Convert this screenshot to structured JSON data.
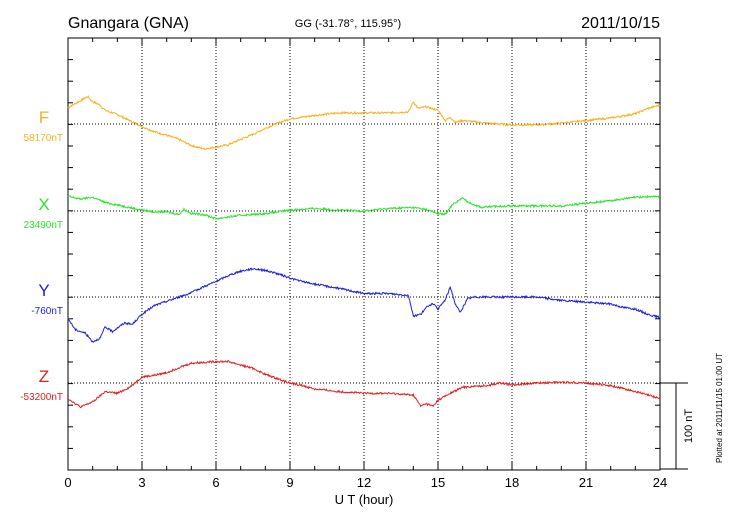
{
  "header": {
    "station": "Gnangara (GNA)",
    "coords": "GG (-31.78°, 115.95°)",
    "date": "2011/10/15"
  },
  "footer_note": "Plotted at 2011/11/15 01:00 UT",
  "scale_bar_label": "100 nT",
  "chart_data": {
    "type": "line",
    "xlabel": "U T (hour)",
    "xlim": [
      0,
      24
    ],
    "xticks": [
      0,
      3,
      6,
      9,
      12,
      15,
      18,
      21,
      24
    ],
    "xtick_labels": [
      "0",
      "3",
      "6",
      "9",
      "12",
      "15",
      "18",
      "21",
      "24"
    ],
    "scale_nT": 100,
    "grid": "dotted",
    "series": [
      {
        "name": "F",
        "baseline_label": "58170nT",
        "color": "#f5b21e",
        "x": [
          0,
          0.5,
          0.8,
          1.0,
          1.3,
          1.5,
          2.0,
          2.5,
          3.0,
          3.5,
          4.0,
          4.5,
          5.0,
          5.5,
          6.0,
          6.5,
          7.0,
          7.5,
          8.0,
          8.5,
          9.0,
          9.5,
          10.0,
          11.0,
          12.0,
          13.0,
          13.8,
          14.0,
          14.2,
          14.5,
          15.0,
          15.3,
          15.5,
          15.7,
          16.0,
          17.0,
          18.0,
          19.0,
          20.0,
          21.0,
          22.0,
          23.0,
          23.5,
          24.0
        ],
        "values": [
          19,
          27,
          32,
          26,
          22,
          16,
          11,
          4,
          -3,
          -9,
          -13,
          -18,
          -25,
          -29,
          -27,
          -24,
          -18,
          -12,
          -5,
          1,
          6,
          8,
          10,
          13,
          13,
          13,
          14,
          26,
          18,
          20,
          16,
          4,
          8,
          2,
          4,
          1,
          -1,
          -1,
          1,
          4,
          7,
          12,
          18,
          22
        ]
      },
      {
        "name": "X",
        "baseline_label": "23490nT",
        "color": "#27e627",
        "x": [
          0,
          0.5,
          1.0,
          1.5,
          2.0,
          2.5,
          3.0,
          3.5,
          4.0,
          4.5,
          4.7,
          5.0,
          5.5,
          6.0,
          7.0,
          8.0,
          9.0,
          10.0,
          11.0,
          12.0,
          13.0,
          14.0,
          14.5,
          15.0,
          15.3,
          15.6,
          16.0,
          16.3,
          16.8,
          17.0,
          18.0,
          19.0,
          20.0,
          21.0,
          22.0,
          23.0,
          24.0
        ],
        "values": [
          17,
          14,
          16,
          10,
          7,
          4,
          1,
          -1,
          -1,
          -4,
          2,
          -3,
          -4,
          -9,
          -5,
          -3,
          1,
          3,
          1,
          0,
          3,
          4,
          2,
          -3,
          -4,
          8,
          15,
          9,
          4,
          5,
          6,
          6,
          6,
          9,
          12,
          16,
          17
        ]
      },
      {
        "name": "Y",
        "baseline_label": "-760nT",
        "color": "#1f1fd6",
        "x": [
          0,
          0.3,
          0.7,
          1.0,
          1.3,
          1.5,
          1.8,
          2.0,
          2.3,
          2.6,
          3.0,
          3.5,
          4.0,
          4.5,
          5.0,
          5.5,
          6.0,
          6.5,
          7.0,
          7.5,
          8.0,
          8.5,
          9.0,
          9.5,
          10.0,
          11.0,
          12.0,
          13.0,
          13.8,
          14.0,
          14.3,
          14.6,
          14.8,
          15.0,
          15.3,
          15.5,
          15.7,
          15.9,
          16.2,
          16.5,
          17.0,
          18.0,
          19.0,
          20.0,
          21.0,
          22.0,
          22.5,
          23.0,
          23.5,
          24.0
        ],
        "values": [
          -25,
          -38,
          -42,
          -52,
          -48,
          -35,
          -40,
          -36,
          -30,
          -32,
          -20,
          -10,
          -5,
          0,
          5,
          12,
          18,
          25,
          30,
          33,
          31,
          27,
          22,
          18,
          15,
          10,
          4,
          4,
          2,
          -22,
          -20,
          -10,
          -8,
          -14,
          -3,
          12,
          -8,
          -18,
          -2,
          0,
          0,
          0,
          0,
          -4,
          -6,
          -8,
          -12,
          -14,
          -20,
          -24
        ]
      },
      {
        "name": "Z",
        "baseline_label": "-53200nT",
        "color": "#e02020",
        "x": [
          0,
          0.5,
          1.0,
          1.3,
          1.5,
          2.0,
          2.5,
          3.0,
          3.5,
          4.0,
          4.5,
          5.0,
          5.5,
          6.0,
          6.5,
          7.0,
          7.5,
          8.0,
          8.5,
          9.0,
          9.5,
          10.0,
          11.0,
          12.0,
          13.0,
          14.0,
          14.3,
          14.5,
          14.8,
          15.0,
          15.5,
          16.0,
          17.0,
          17.5,
          18.0,
          19.0,
          20.0,
          21.0,
          22.0,
          23.0,
          24.0
        ],
        "values": [
          -18,
          -28,
          -22,
          -15,
          -10,
          -12,
          -5,
          7,
          9,
          12,
          18,
          23,
          24,
          25,
          25,
          21,
          17,
          10,
          5,
          0,
          -3,
          -7,
          -10,
          -12,
          -12,
          -14,
          -27,
          -24,
          -27,
          -20,
          -12,
          -5,
          -3,
          0,
          -2,
          0,
          1,
          0,
          -3,
          -10,
          -18
        ]
      }
    ]
  }
}
